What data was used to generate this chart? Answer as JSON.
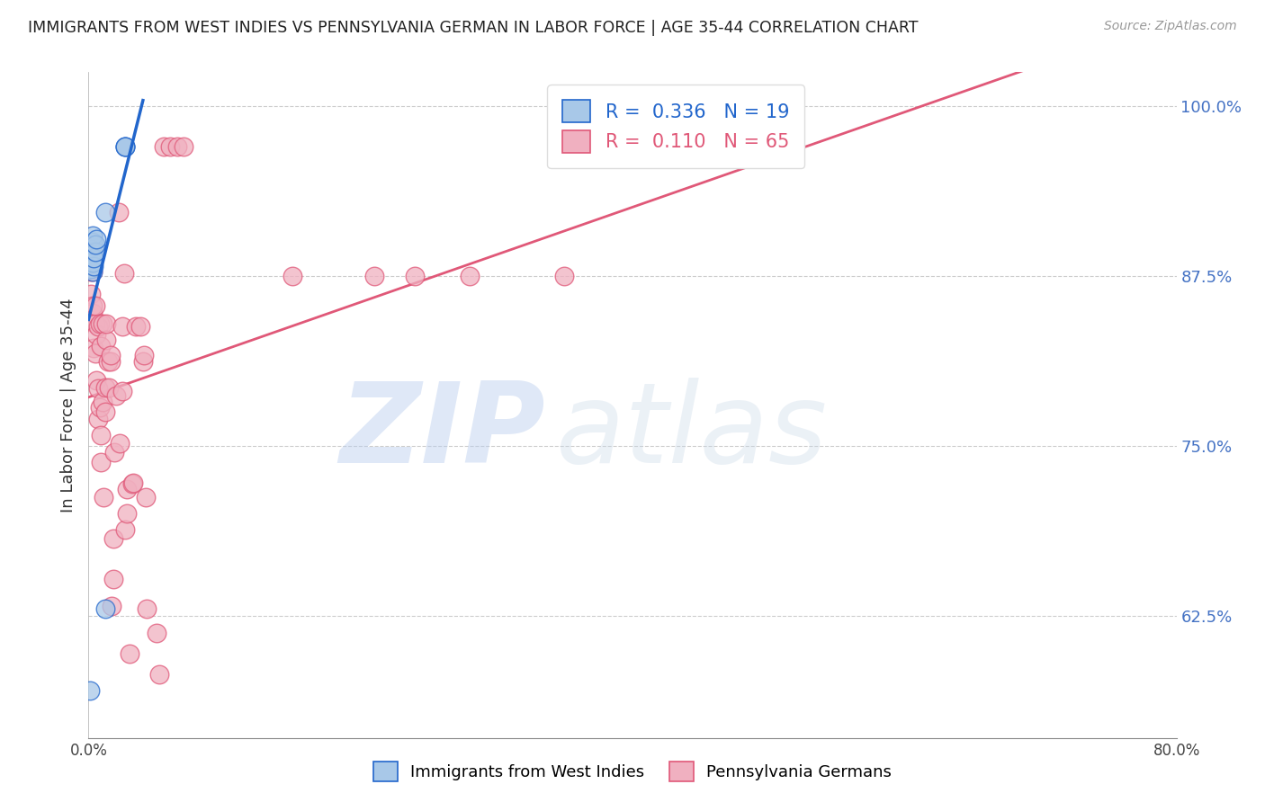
{
  "title": "IMMIGRANTS FROM WEST INDIES VS PENNSYLVANIA GERMAN IN LABOR FORCE | AGE 35-44 CORRELATION CHART",
  "source": "Source: ZipAtlas.com",
  "ylabel": "In Labor Force | Age 35-44",
  "right_yticks": [
    0.625,
    0.75,
    0.875,
    1.0
  ],
  "right_yticklabels": [
    "62.5%",
    "75.0%",
    "87.5%",
    "100.0%"
  ],
  "legend_blue_r": "0.336",
  "legend_blue_n": "19",
  "legend_pink_r": "0.110",
  "legend_pink_n": "65",
  "blue_color": "#a8c8e8",
  "pink_color": "#f0b0c0",
  "blue_line_color": "#2266cc",
  "pink_line_color": "#e05878",
  "watermark_zip": "ZIP",
  "watermark_atlas": "atlas",
  "blue_scatter_x": [
    0.001,
    0.002,
    0.002,
    0.003,
    0.003,
    0.003,
    0.003,
    0.003,
    0.003,
    0.004,
    0.004,
    0.005,
    0.005,
    0.006,
    0.012,
    0.012,
    0.027,
    0.027,
    0.027
  ],
  "blue_scatter_y": [
    0.57,
    0.88,
    0.895,
    0.878,
    0.885,
    0.893,
    0.898,
    0.9,
    0.905,
    0.882,
    0.888,
    0.893,
    0.898,
    0.902,
    0.63,
    0.922,
    0.97,
    0.97,
    0.97
  ],
  "pink_scatter_x": [
    0.001,
    0.002,
    0.003,
    0.003,
    0.003,
    0.004,
    0.005,
    0.005,
    0.005,
    0.006,
    0.006,
    0.007,
    0.007,
    0.007,
    0.008,
    0.008,
    0.009,
    0.009,
    0.009,
    0.01,
    0.01,
    0.011,
    0.012,
    0.012,
    0.013,
    0.013,
    0.014,
    0.015,
    0.016,
    0.016,
    0.017,
    0.018,
    0.018,
    0.019,
    0.02,
    0.022,
    0.023,
    0.025,
    0.025,
    0.026,
    0.027,
    0.028,
    0.028,
    0.03,
    0.032,
    0.033,
    0.035,
    0.038,
    0.04,
    0.041,
    0.042,
    0.043,
    0.05,
    0.052,
    0.055,
    0.06,
    0.065,
    0.07,
    0.15,
    0.21,
    0.24,
    0.28,
    0.35,
    0.5,
    0.5
  ],
  "pink_scatter_y": [
    0.878,
    0.862,
    0.848,
    0.853,
    0.878,
    0.822,
    0.818,
    0.84,
    0.853,
    0.798,
    0.832,
    0.77,
    0.792,
    0.838,
    0.778,
    0.84,
    0.738,
    0.758,
    0.823,
    0.782,
    0.84,
    0.712,
    0.775,
    0.793,
    0.828,
    0.84,
    0.812,
    0.793,
    0.812,
    0.817,
    0.632,
    0.652,
    0.682,
    0.745,
    0.787,
    0.922,
    0.752,
    0.79,
    0.838,
    0.877,
    0.688,
    0.7,
    0.718,
    0.597,
    0.722,
    0.723,
    0.838,
    0.838,
    0.812,
    0.817,
    0.712,
    0.63,
    0.612,
    0.582,
    0.97,
    0.97,
    0.97,
    0.97,
    0.875,
    0.875,
    0.875,
    0.875,
    0.875,
    0.97,
    0.97
  ],
  "xmin": 0.0,
  "xmax": 0.8,
  "ymin": 0.535,
  "ymax": 1.025,
  "blue_trend_xstart": 0.0,
  "blue_trend_xend": 0.04,
  "pink_trend_xstart": 0.0,
  "pink_trend_xend": 0.8,
  "figwidth": 14.06,
  "figheight": 8.92
}
